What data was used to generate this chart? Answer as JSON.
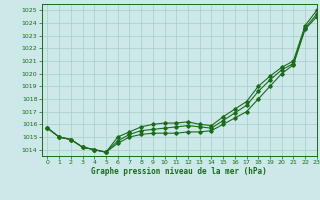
{
  "title": "Graphe pression niveau de la mer (hPa)",
  "background_color": "#cce8e8",
  "grid_color": "#b0d0d0",
  "line_color": "#1a6b1a",
  "xlim": [
    -0.5,
    23
  ],
  "ylim": [
    1013.5,
    1025.5
  ],
  "yticks": [
    1014,
    1015,
    1016,
    1017,
    1018,
    1019,
    1020,
    1021,
    1022,
    1023,
    1024,
    1025
  ],
  "xticks": [
    0,
    1,
    2,
    3,
    4,
    5,
    6,
    7,
    8,
    9,
    10,
    11,
    12,
    13,
    14,
    15,
    16,
    17,
    18,
    19,
    20,
    21,
    22,
    23
  ],
  "series1": [
    1015.7,
    1015.0,
    1014.8,
    1014.2,
    1014.0,
    1013.8,
    1014.5,
    1015.0,
    1015.2,
    1015.3,
    1015.3,
    1015.3,
    1015.4,
    1015.4,
    1015.5,
    1016.0,
    1016.5,
    1017.0,
    1018.0,
    1019.0,
    1020.0,
    1020.7,
    1023.5,
    1024.5
  ],
  "series2": [
    1015.7,
    1015.0,
    1014.8,
    1014.2,
    1014.0,
    1013.8,
    1014.7,
    1015.2,
    1015.5,
    1015.6,
    1015.7,
    1015.8,
    1015.9,
    1015.8,
    1015.7,
    1016.3,
    1016.9,
    1017.5,
    1018.6,
    1019.5,
    1020.3,
    1020.8,
    1023.6,
    1024.7
  ],
  "series3": [
    1015.7,
    1015.0,
    1014.8,
    1014.2,
    1014.0,
    1013.8,
    1015.0,
    1015.4,
    1015.8,
    1016.0,
    1016.1,
    1016.1,
    1016.2,
    1016.0,
    1015.9,
    1016.6,
    1017.2,
    1017.8,
    1019.0,
    1019.8,
    1020.5,
    1021.0,
    1023.8,
    1025.0
  ]
}
